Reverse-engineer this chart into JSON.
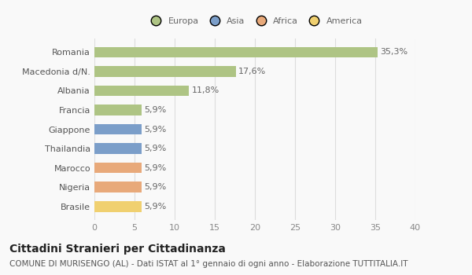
{
  "categories": [
    "Romania",
    "Macedonia d/N.",
    "Albania",
    "Francia",
    "Giappone",
    "Thailandia",
    "Marocco",
    "Nigeria",
    "Brasile"
  ],
  "values": [
    35.3,
    17.6,
    11.8,
    5.9,
    5.9,
    5.9,
    5.9,
    5.9,
    5.9
  ],
  "labels": [
    "35,3%",
    "17,6%",
    "11,8%",
    "5,9%",
    "5,9%",
    "5,9%",
    "5,9%",
    "5,9%",
    "5,9%"
  ],
  "colors": [
    "#aec484",
    "#aec484",
    "#aec484",
    "#aec484",
    "#7b9ec9",
    "#7b9ec9",
    "#e8a97a",
    "#e8a97a",
    "#f0d070"
  ],
  "legend": [
    {
      "label": "Europa",
      "color": "#aec484"
    },
    {
      "label": "Asia",
      "color": "#7b9ec9"
    },
    {
      "label": "Africa",
      "color": "#e8a97a"
    },
    {
      "label": "America",
      "color": "#f0d070"
    }
  ],
  "xlim": [
    0,
    40
  ],
  "xticks": [
    0,
    5,
    10,
    15,
    20,
    25,
    30,
    35,
    40
  ],
  "title": "Cittadini Stranieri per Cittadinanza",
  "subtitle": "COMUNE DI MURISENGO (AL) - Dati ISTAT al 1° gennaio di ogni anno - Elaborazione TUTTITALIA.IT",
  "bg_color": "#f9f9f9",
  "grid_color": "#dddddd",
  "bar_height": 0.55,
  "label_fontsize": 8,
  "tick_fontsize": 8,
  "title_fontsize": 10,
  "subtitle_fontsize": 7.5
}
